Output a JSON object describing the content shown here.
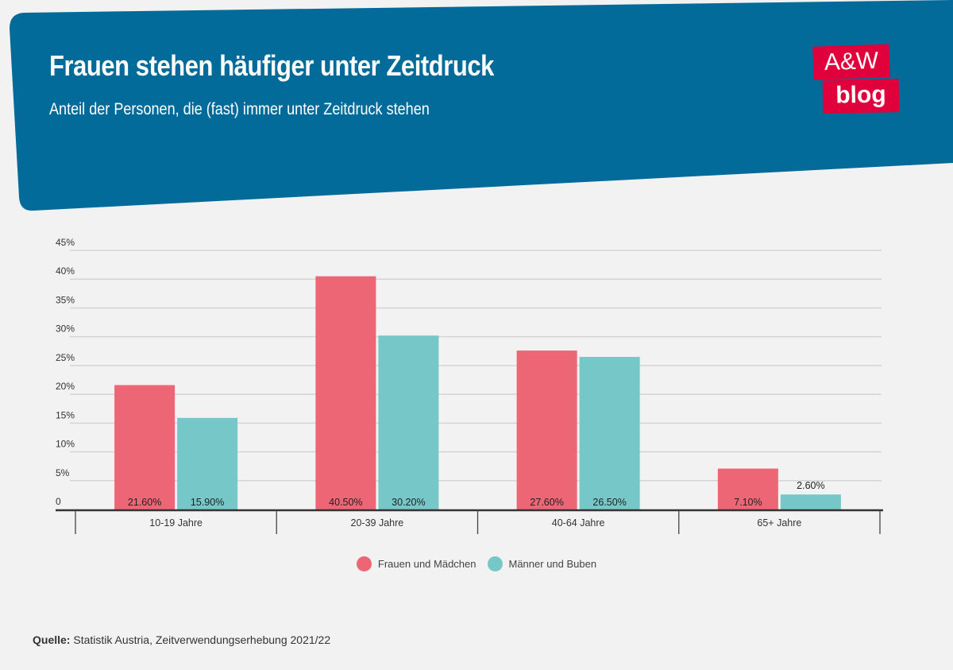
{
  "header": {
    "title": "Frauen stehen häufiger unter Zeitdruck",
    "subtitle": "Anteil der Personen, die (fast) immer unter Zeitdruck stehen",
    "background_color": "#036b99"
  },
  "logo": {
    "line1": "A&W",
    "line2": "blog",
    "color": "#e0003c"
  },
  "chart_data": {
    "type": "bar",
    "title": "Frauen stehen häufiger unter Zeitdruck",
    "subtitle": "Anteil der Personen, die (fast) immer unter Zeitdruck stehen",
    "xlabel": "",
    "ylabel": "",
    "categories": [
      "10-19 Jahre",
      "20-39 Jahre",
      "40-64 Jahre",
      "65+ Jahre"
    ],
    "series": [
      {
        "name": "Frauen und Mädchen",
        "color": "#ec6675",
        "values": [
          21.6,
          40.5,
          27.6,
          7.1
        ],
        "labels": [
          "21.60%",
          "40.50%",
          "27.60%",
          "7.10%"
        ]
      },
      {
        "name": "Männer und Buben",
        "color": "#75c8c7",
        "values": [
          15.9,
          30.2,
          26.5,
          2.6
        ],
        "labels": [
          "15.90%",
          "30.20%",
          "26.50%",
          "2.60%"
        ]
      }
    ],
    "ylim": [
      0,
      45
    ],
    "yticks": [
      0,
      5,
      10,
      15,
      20,
      25,
      30,
      35,
      40,
      45
    ],
    "ytick_labels": [
      "0",
      "5%",
      "10%",
      "15%",
      "20%",
      "25%",
      "30%",
      "35%",
      "40%",
      "45%"
    ],
    "grid": true,
    "legend_position": "bottom-center"
  },
  "legend": {
    "items": [
      {
        "label": "Frauen und Mädchen",
        "color": "#ec6675"
      },
      {
        "label": "Männer und Buben",
        "color": "#75c8c7"
      }
    ]
  },
  "source": {
    "label": "Quelle:",
    "text": "Statistik Austria, Zeitverwendungserhebung 2021/22"
  }
}
